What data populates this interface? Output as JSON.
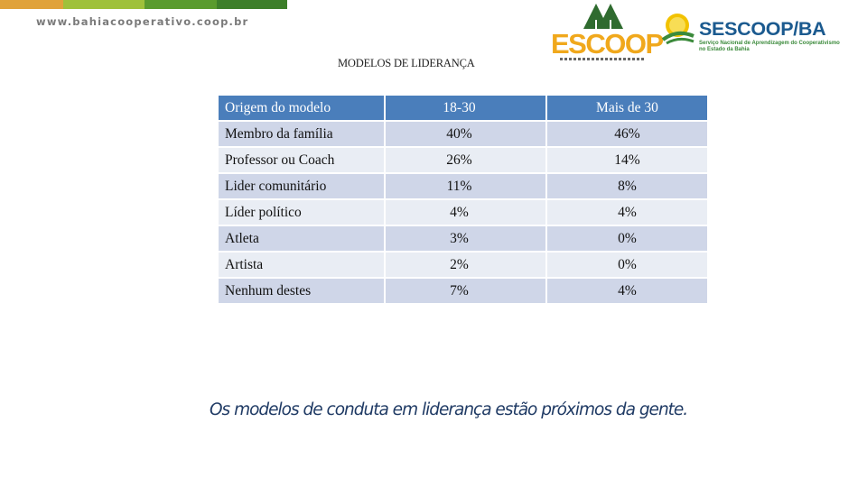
{
  "header": {
    "url": "www.bahiacooperativo.coop.br",
    "bar_colors": [
      "#e0a23a",
      "#9fc13a",
      "#5a9b2e",
      "#3d7f2a"
    ]
  },
  "slide": {
    "title": "MODELOS DE LIDERANÇA"
  },
  "logos": {
    "escoop": {
      "name": "ESCOOP",
      "color": "#f0a81c",
      "tree_color": "#2f6b2f"
    },
    "sescoop": {
      "name": "SESCOOP/BA",
      "line1": "Serviço Nacional de Aprendizagem do Cooperativismo",
      "line2": "no Estado da Bahia",
      "color": "#1b5a8f",
      "line_color": "#3b8a3b"
    }
  },
  "table": {
    "headers": [
      "Origem do modelo",
      "18-30",
      "Mais de 30"
    ],
    "rows": [
      [
        "Membro da família",
        "40%",
        "46%"
      ],
      [
        "Professor ou Coach",
        "26%",
        "14%"
      ],
      [
        "Lider comunitário",
        "11%",
        "8%"
      ],
      [
        "Líder político",
        "4%",
        "4%"
      ],
      [
        "Atleta",
        "3%",
        "0%"
      ],
      [
        "Artista",
        "2%",
        "0%"
      ],
      [
        "Nenhum destes",
        "7%",
        "4%"
      ]
    ],
    "colors": {
      "header": "#4a7ebb",
      "row_odd": "#cfd6e8",
      "row_even": "#e9edf4"
    }
  },
  "conclusion": "Os modelos de conduta em liderança estão próximos da gente."
}
